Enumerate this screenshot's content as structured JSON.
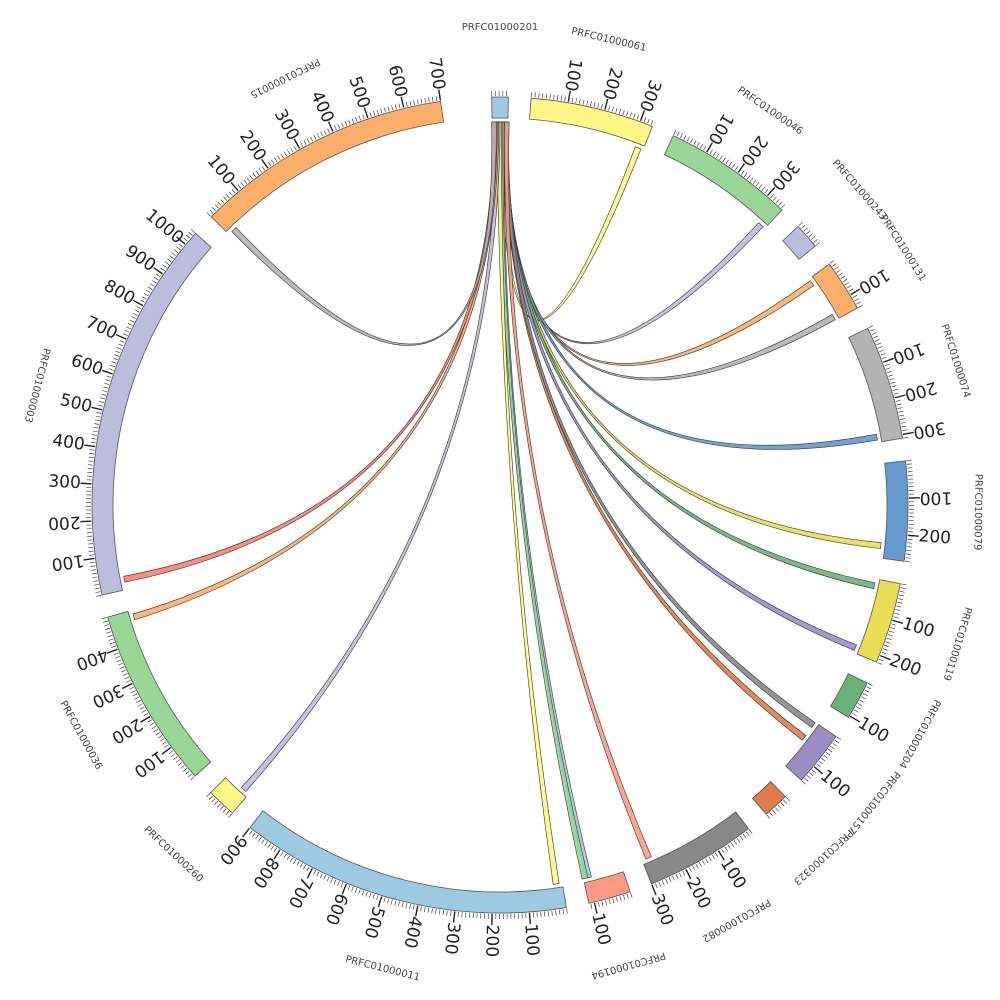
{
  "chart_data": {
    "type": "chord",
    "title": "",
    "tick_step_major": 100,
    "tick_step_minor": 10,
    "contigs": [
      {
        "name": "PRFC01000201",
        "length": 45,
        "color": "#9ecae1"
      },
      {
        "name": "PRFC01000061",
        "length": 335,
        "color": "#fff685"
      },
      {
        "name": "PRFC01000046",
        "length": 355,
        "color": "#99d595"
      },
      {
        "name": "PRFC01000243",
        "length": 70,
        "color": "#bcbddc"
      },
      {
        "name": "PRFC01000131",
        "length": 140,
        "color": "#fdae6b"
      },
      {
        "name": "PRFC01000074",
        "length": 310,
        "color": "#b3b3b3"
      },
      {
        "name": "PRFC01000079",
        "length": 270,
        "color": "#6699cc"
      },
      {
        "name": "PRFC01000119",
        "length": 220,
        "color": "#e8dd55"
      },
      {
        "name": "PRFC01000204",
        "length": 105,
        "color": "#6ab27a"
      },
      {
        "name": "PRFC01000157",
        "length": 150,
        "color": "#9b8dc4"
      },
      {
        "name": "PRFC01000323",
        "length": 70,
        "color": "#e07b4a"
      },
      {
        "name": "PRFC01000082",
        "length": 300,
        "color": "#888888"
      },
      {
        "name": "PRFC01000194",
        "length": 115,
        "color": "#fb9a84"
      },
      {
        "name": "PRFC01000011",
        "length": 900,
        "color": "#9ecae1"
      },
      {
        "name": "PRFC01000260",
        "length": 80,
        "color": "#fff685"
      },
      {
        "name": "PRFC01000036",
        "length": 490,
        "color": "#99d595"
      },
      {
        "name": "PRFC01000003",
        "length": 1040,
        "color": "#bcbddc"
      },
      {
        "name": "PRFC01000015",
        "length": 700,
        "color": "#fdae6b"
      }
    ],
    "links": [
      {
        "a": "PRFC01000201",
        "a_pos": 32,
        "b": "PRFC01000061",
        "b_pos": 320,
        "color": "#fff685"
      },
      {
        "a": "PRFC01000201",
        "a_pos": 33,
        "b": "PRFC01000046",
        "b_pos": 340,
        "color": "#bcbddc"
      },
      {
        "a": "PRFC01000201",
        "a_pos": 34,
        "b": "PRFC01000131",
        "b_pos": 15,
        "color": "#fdae6b"
      },
      {
        "a": "PRFC01000201",
        "a_pos": 35,
        "b": "PRFC01000131",
        "b_pos": 130,
        "color": "#b3b3b3"
      },
      {
        "a": "PRFC01000201",
        "a_pos": 36,
        "b": "PRFC01000074",
        "b_pos": 295,
        "color": "#6699cc"
      },
      {
        "a": "PRFC01000201",
        "a_pos": 37,
        "b": "PRFC01000079",
        "b_pos": 235,
        "color": "#e8dd55"
      },
      {
        "a": "PRFC01000201",
        "a_pos": 38,
        "b": "PRFC01000119",
        "b_pos": 20,
        "color": "#6ab27a"
      },
      {
        "a": "PRFC01000201",
        "a_pos": 39,
        "b": "PRFC01000119",
        "b_pos": 205,
        "color": "#9b8dc4"
      },
      {
        "a": "PRFC01000201",
        "a_pos": 40,
        "b": "PRFC01000157",
        "b_pos": 55,
        "color": "#e07b4a"
      },
      {
        "a": "PRFC01000201",
        "a_pos": 41,
        "b": "PRFC01000157",
        "b_pos": 10,
        "color": "#888888"
      },
      {
        "a": "PRFC01000201",
        "a_pos": 42,
        "b": "PRFC01000082",
        "b_pos": 280,
        "color": "#fb9a84"
      },
      {
        "a": "PRFC01000201",
        "a_pos": 28,
        "b": "PRFC01000194",
        "b_pos": 100,
        "color": "#9ecae1"
      },
      {
        "a": "PRFC01000201",
        "a_pos": 24,
        "b": "PRFC01000194",
        "b_pos": 110,
        "color": "#99d595"
      },
      {
        "a": "PRFC01000201",
        "a_pos": 20,
        "b": "PRFC01000011",
        "b_pos": 18,
        "color": "#fff685"
      },
      {
        "a": "PRFC01000201",
        "a_pos": 16,
        "b": "PRFC01000260",
        "b_pos": 20,
        "color": "#bcbddc"
      },
      {
        "a": "PRFC01000201",
        "a_pos": 12,
        "b": "PRFC01000036",
        "b_pos": 470,
        "color": "#fdae6b"
      },
      {
        "a": "PRFC01000201",
        "a_pos": 8,
        "b": "PRFC01000003",
        "b_pos": 30,
        "color": "#fb8072"
      },
      {
        "a": "PRFC01000201",
        "a_pos": 5,
        "b": "PRFC01000015",
        "b_pos": 20,
        "color": "#b3b3b3"
      }
    ]
  }
}
